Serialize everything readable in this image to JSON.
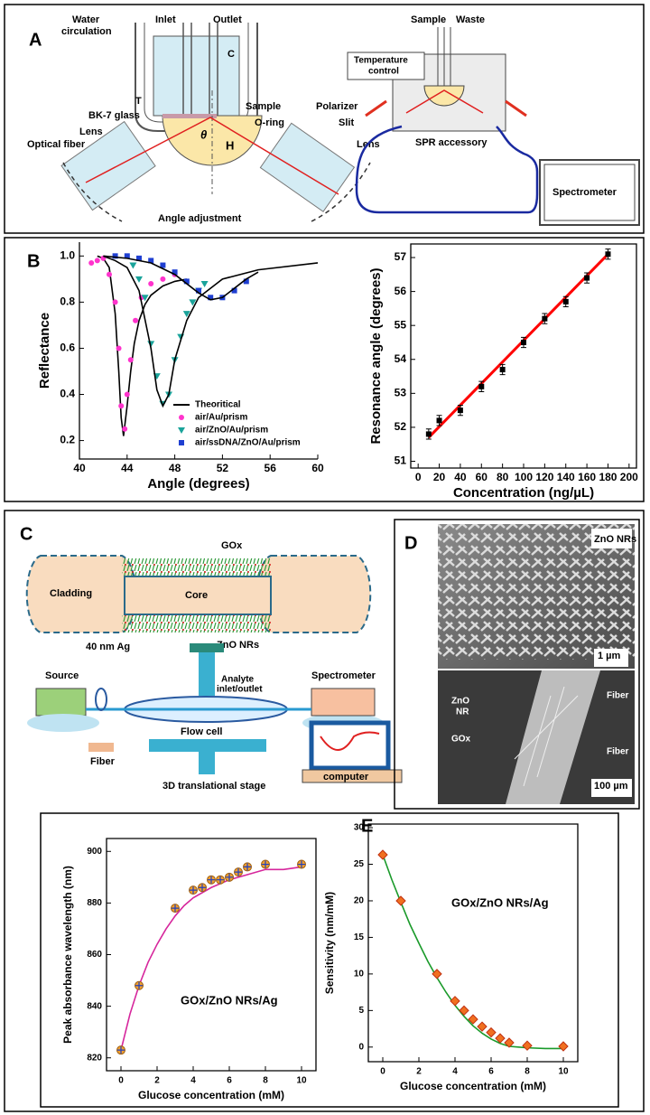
{
  "panels": {
    "A": {
      "label": "A",
      "water_circulation": [
        "Water",
        "circulation"
      ],
      "inlet": "Inlet",
      "outlet": "Outlet",
      "c": "C",
      "t": "T",
      "sample": "Sample",
      "bk7": "BK-7 glass",
      "oring": "O-ring",
      "polarizer": "Polarizer",
      "slit": "Slit",
      "optical_fiber": "Optical fiber",
      "lens_left": "Lens",
      "lens_right": "Lens",
      "theta": "θ",
      "h": "H",
      "angle_adjustment": "Angle adjustment",
      "sample_right": "Sample",
      "waste": "Waste",
      "temperature_control": [
        "Temperature",
        "control"
      ],
      "spr_accessory": "SPR accessory",
      "spectrometer": "Spectrometer"
    },
    "B": {
      "label": "B"
    },
    "C": {
      "label": "C",
      "gox": "GOx",
      "cladding": "Cladding",
      "core": "Core",
      "ag": "40 nm Ag",
      "zno": "ZnO NRs",
      "analyte": [
        "Analyte",
        "inlet/outlet"
      ],
      "source": "Source",
      "spectrometer": "Spectrometer",
      "flow_cell": "Flow cell",
      "fiber": "Fiber",
      "stage": "3D translational stage",
      "computer": "computer"
    },
    "D": {
      "label": "D",
      "zno_nrs": "ZnO NRs",
      "scale_top": "1 µm",
      "zno_nr": [
        "ZnO",
        "NR"
      ],
      "fiber_top": "Fiber",
      "gox": "GOx",
      "fiber_bottom": "Fiber",
      "scale_bottom": "100 µm"
    },
    "E": {
      "label": "E"
    }
  },
  "chart_data": [
    {
      "type": "scatter",
      "x_label": "Angle (degrees)",
      "y_label": "Reflectance",
      "xlim": [
        40,
        60
      ],
      "xticks": [
        40,
        44,
        48,
        52,
        56,
        60
      ],
      "ylim": [
        0.12,
        1.06
      ],
      "yticks": [
        0.2,
        0.4,
        0.6,
        0.8,
        {
          "value": 1,
          "label": "1.0"
        }
      ],
      "legend": "lower right",
      "series": [
        {
          "name": "Theoritical",
          "style": "line",
          "color": "#000000",
          "x": [
            41.5,
            42,
            42.5,
            43,
            43.3,
            43.5,
            43.7,
            44,
            44.3,
            44.6,
            45,
            45.5,
            46,
            47,
            48,
            49
          ],
          "values": [
            1.0,
            0.99,
            0.95,
            0.75,
            0.5,
            0.3,
            0.22,
            0.35,
            0.5,
            0.62,
            0.72,
            0.79,
            0.83,
            0.87,
            0.89,
            0.9
          ]
        },
        {
          "name": "air/Au/prism",
          "style": "markers",
          "marker": "circle",
          "color": "#ff33cc",
          "x": [
            41,
            41.5,
            42,
            42.5,
            43,
            43.3,
            43.5,
            43.8,
            44,
            44.3,
            44.7,
            45.2,
            46,
            47,
            48
          ],
          "values": [
            0.97,
            0.98,
            0.99,
            0.92,
            0.8,
            0.6,
            0.35,
            0.25,
            0.4,
            0.55,
            0.72,
            0.82,
            0.88,
            0.9,
            0.92
          ]
        },
        {
          "name": "air/ZnO/Au/prism",
          "style": "markers",
          "marker": "triangle",
          "color": "#1aa39a",
          "x": [
            44.5,
            45,
            45.5,
            46,
            46.5,
            47,
            47.5,
            48,
            48.5,
            49,
            49.5,
            50,
            50.5
          ],
          "values": [
            0.96,
            0.9,
            0.82,
            0.62,
            0.48,
            0.36,
            0.4,
            0.55,
            0.65,
            0.75,
            0.8,
            0.85,
            0.88
          ]
        },
        {
          "name": "air/ssDNA/ZnO/Au/prism",
          "style": "markers",
          "marker": "square",
          "color": "#1f3fd1",
          "x": [
            43,
            44,
            45,
            46,
            47,
            48,
            49,
            50,
            51,
            52,
            53,
            54
          ],
          "values": [
            1.0,
            1.0,
            0.99,
            0.98,
            0.96,
            0.93,
            0.89,
            0.85,
            0.82,
            0.82,
            0.85,
            0.89
          ]
        },
        {
          "style": "line",
          "color": "#000000",
          "x": [
            42,
            43,
            44,
            45,
            46,
            46.5,
            47,
            47.5,
            48,
            49,
            50,
            52,
            55,
            60
          ],
          "values": [
            1.0,
            0.98,
            0.95,
            0.85,
            0.6,
            0.42,
            0.35,
            0.4,
            0.55,
            0.72,
            0.82,
            0.9,
            0.94,
            0.97
          ]
        },
        {
          "style": "line",
          "color": "#000000",
          "x": [
            42,
            44,
            46,
            48,
            50,
            51,
            52,
            53,
            54,
            55
          ],
          "values": [
            1.0,
            0.99,
            0.97,
            0.92,
            0.84,
            0.81,
            0.82,
            0.86,
            0.9,
            0.93
          ]
        }
      ]
    },
    {
      "type": "scatter",
      "x_label": "Concentration (ng/µL)",
      "y_label": "Resonance angle (degrees)",
      "xlim": [
        -7,
        207
      ],
      "xticks": [
        0,
        20,
        40,
        60,
        80,
        100,
        120,
        140,
        160,
        180,
        200
      ],
      "ylim": [
        50.8,
        57.4
      ],
      "yticks": [
        51,
        52,
        53,
        54,
        55,
        56,
        57
      ],
      "series": [
        {
          "style": "line",
          "color": "#ff0000",
          "x": [
            10,
            180
          ],
          "values": [
            51.7,
            57.1
          ]
        },
        {
          "style": "markers",
          "marker": "square",
          "color": "#000000",
          "x": [
            10,
            20,
            40,
            60,
            80,
            100,
            120,
            140,
            160,
            180
          ],
          "values": [
            51.8,
            52.2,
            52.5,
            53.2,
            53.7,
            54.5,
            55.2,
            55.7,
            56.4,
            57.1
          ],
          "errors": [
            0.15,
            0.15,
            0.15,
            0.15,
            0.15,
            0.15,
            0.15,
            0.15,
            0.15,
            0.15
          ]
        }
      ]
    },
    {
      "type": "scatter",
      "x_label": "Glucose concentration (mM)",
      "y_label": "Peak absorbance wavelength (nm)",
      "annotation": "GOx/ZnO NRs/Ag",
      "xlim": [
        -0.8,
        10.8
      ],
      "xticks": [
        0,
        2,
        4,
        6,
        8,
        10
      ],
      "ylim": [
        815,
        905
      ],
      "yticks": [
        820,
        840,
        860,
        880,
        900
      ],
      "series": [
        {
          "style": "line",
          "color": "#d6269c",
          "x": [
            0,
            0.5,
            1,
            1.5,
            2,
            2.5,
            3,
            3.5,
            4,
            5,
            6,
            7,
            8,
            9,
            10
          ],
          "values": [
            823,
            837,
            848,
            857,
            864,
            870,
            875,
            879,
            882,
            886,
            889,
            891,
            893,
            893,
            894
          ]
        },
        {
          "style": "markers",
          "marker": "cross-circle",
          "color": "#f0a030",
          "x": [
            0,
            1,
            3,
            4,
            4.5,
            5,
            5.5,
            6,
            6.5,
            7,
            8,
            10
          ],
          "values": [
            823,
            848,
            878,
            885,
            886,
            889,
            889,
            890,
            892,
            894,
            895,
            895
          ]
        }
      ]
    },
    {
      "type": "scatter",
      "x_label": "Glucose concentration (mM)",
      "y_label": "Sensitivity (nm/mM)",
      "annotation": "GOx/ZnO NRs/Ag",
      "xlim": [
        -0.8,
        10.8
      ],
      "xticks": [
        0,
        2,
        4,
        6,
        8,
        10
      ],
      "ylim": [
        -2,
        30.5
      ],
      "yticks": [
        0,
        5,
        10,
        15,
        20,
        25,
        30
      ],
      "series": [
        {
          "style": "line",
          "color": "#1a9a2a",
          "x": [
            0,
            0.5,
            1,
            1.5,
            2,
            2.5,
            3,
            3.5,
            4,
            4.5,
            5,
            5.5,
            6,
            6.5,
            7,
            7.5,
            8,
            9,
            10
          ],
          "values": [
            26.3,
            22.9,
            19.8,
            16.8,
            14.2,
            11.7,
            9.5,
            7.5,
            5.7,
            4.2,
            2.9,
            1.9,
            1.1,
            0.5,
            0.1,
            0,
            -0.1,
            -0.2,
            -0.2
          ]
        },
        {
          "style": "markers",
          "marker": "diamond",
          "color": "#f07020",
          "x": [
            0,
            1,
            3,
            4,
            4.5,
            5,
            5.5,
            6,
            6.5,
            7,
            8,
            10
          ],
          "values": [
            26.3,
            20,
            10,
            6.3,
            5,
            3.8,
            2.8,
            2,
            1.2,
            0.6,
            0.2,
            0.1
          ]
        }
      ]
    }
  ]
}
